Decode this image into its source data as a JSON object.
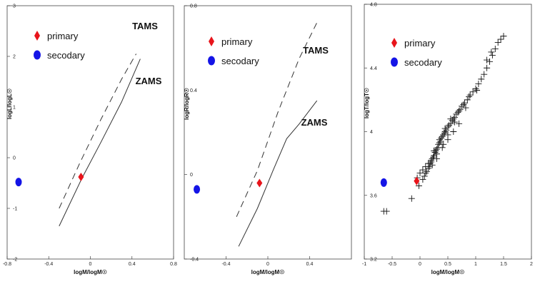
{
  "chart_data": [
    {
      "type": "line",
      "xlabel": "logM/logM☉",
      "ylabel": "logL/logL☉",
      "xlim": [
        -0.8,
        0.8
      ],
      "ylim": [
        -2,
        3
      ],
      "xticks": [
        "-0.8",
        "-0.4",
        "0",
        "0.4",
        "0.8"
      ],
      "yticks": [
        "-2",
        "-1",
        "0",
        "1",
        "2",
        "3"
      ],
      "legend": [
        "primary",
        "secodary"
      ],
      "legend_placement": "top-left",
      "annotations": [
        "TAMS",
        "ZAMS"
      ],
      "series": [
        {
          "name": "TAMS",
          "style": "dashed",
          "x": [
            -0.3,
            -0.1,
            0.1,
            0.3,
            0.44
          ],
          "y": [
            -1.0,
            -0.1,
            0.75,
            1.55,
            2.05
          ]
        },
        {
          "name": "ZAMS",
          "style": "solid",
          "x": [
            -0.3,
            -0.08,
            0.1,
            0.3,
            0.48
          ],
          "y": [
            -1.35,
            -0.4,
            0.3,
            1.1,
            1.95
          ]
        }
      ],
      "points": [
        {
          "name": "primary",
          "marker": "diamond",
          "color": "#e8141b",
          "x": -0.09,
          "y": -0.38
        },
        {
          "name": "secodary",
          "marker": "circle",
          "color": "#1414e6",
          "x": -0.69,
          "y": -0.48
        }
      ]
    },
    {
      "type": "line",
      "xlabel": "logM/logM☉",
      "ylabel": "logR/logR☉",
      "xlim": [
        -0.8,
        0.8
      ],
      "ylim": [
        -0.4,
        0.8
      ],
      "xticks": [
        "-0.4",
        "0",
        "0.4"
      ],
      "yticks": [
        "-0.4",
        "0",
        "0.4",
        "0.8"
      ],
      "legend": [
        "primary",
        "secodary"
      ],
      "legend_placement": "top-left",
      "annotations": [
        "TAMS",
        "ZAMS"
      ],
      "series": [
        {
          "name": "TAMS",
          "style": "dashed",
          "x": [
            -0.3,
            -0.1,
            0.1,
            0.3,
            0.47
          ],
          "y": [
            -0.2,
            0.02,
            0.3,
            0.55,
            0.72
          ]
        },
        {
          "name": "ZAMS",
          "style": "solid",
          "x": [
            -0.28,
            -0.1,
            0.05,
            0.18,
            0.3,
            0.47
          ],
          "y": [
            -0.34,
            -0.16,
            0.02,
            0.17,
            0.24,
            0.35
          ]
        }
      ],
      "points": [
        {
          "name": "primary",
          "marker": "diamond",
          "color": "#e8141b",
          "x": -0.08,
          "y": -0.04
        },
        {
          "name": "secodary",
          "marker": "circle",
          "color": "#1414e6",
          "x": -0.68,
          "y": -0.07
        }
      ]
    },
    {
      "type": "scatter",
      "xlabel": "logM/logM☉",
      "ylabel": "logT/logT☉",
      "xlim": [
        -1,
        2
      ],
      "ylim": [
        3.2,
        4.8
      ],
      "xticks": [
        "-1",
        "-0.5",
        "0",
        "0.5",
        "1",
        "1.5",
        "2"
      ],
      "yticks": [
        "3.2",
        "3.6",
        "4",
        "4.4",
        "4.8"
      ],
      "legend": [
        "primary",
        "secodary"
      ],
      "legend_placement": "top-left",
      "series": [
        {
          "name": "",
          "marker": "plus",
          "color": "#111111",
          "x": [
            -0.65,
            -0.6,
            -0.15,
            -0.02,
            0.05,
            0.08,
            0.1,
            0.12,
            0.15,
            0.17,
            0.18,
            0.2,
            0.22,
            0.24,
            0.25,
            0.27,
            0.28,
            0.3,
            0.32,
            0.33,
            0.35,
            0.37,
            0.38,
            0.4,
            0.42,
            0.44,
            0.45,
            0.47,
            0.5,
            0.52,
            0.55,
            0.58,
            0.6,
            0.62,
            0.65,
            0.68,
            0.7,
            0.72,
            0.75,
            0.78,
            0.8,
            0.85,
            0.88,
            0.9,
            0.95,
            1.0,
            1.05,
            1.1,
            1.15,
            1.2,
            1.25,
            1.3,
            1.35,
            1.4,
            1.5,
            0.0,
            0.1,
            0.2,
            0.3,
            0.4,
            0.5,
            0.6,
            0.7,
            0.35,
            0.45,
            0.55,
            0.15,
            0.25,
            1.2,
            0.3,
            0.5,
            -0.05,
            0.05,
            0.22,
            0.42,
            0.62,
            0.82,
            1.02,
            1.28,
            1.45
          ],
          "y": [
            3.5,
            3.5,
            3.58,
            3.66,
            3.7,
            3.72,
            3.74,
            3.75,
            3.77,
            3.78,
            3.8,
            3.81,
            3.83,
            3.84,
            3.85,
            3.87,
            3.88,
            3.89,
            3.9,
            3.92,
            3.93,
            3.94,
            3.96,
            3.97,
            3.98,
            3.99,
            4.0,
            4.01,
            4.03,
            4.04,
            4.05,
            4.07,
            4.08,
            4.09,
            4.11,
            4.12,
            4.13,
            4.14,
            4.16,
            4.17,
            4.18,
            4.2,
            4.22,
            4.23,
            4.25,
            4.27,
            4.3,
            4.33,
            4.36,
            4.4,
            4.44,
            4.48,
            4.52,
            4.56,
            4.6,
            3.74,
            3.78,
            3.82,
            3.86,
            3.9,
            3.95,
            4.0,
            4.05,
            3.95,
            4.02,
            4.08,
            3.8,
            3.88,
            4.45,
            3.83,
            3.98,
            3.71,
            3.76,
            3.79,
            3.92,
            4.06,
            4.15,
            4.26,
            4.5,
            4.58
          ]
        }
      ],
      "points": [
        {
          "name": "primary",
          "marker": "diamond",
          "color": "#e8141b",
          "x": -0.06,
          "y": 3.69
        },
        {
          "name": "secodary",
          "marker": "circle",
          "color": "#1414e6",
          "x": -0.65,
          "y": 3.68
        }
      ]
    }
  ]
}
